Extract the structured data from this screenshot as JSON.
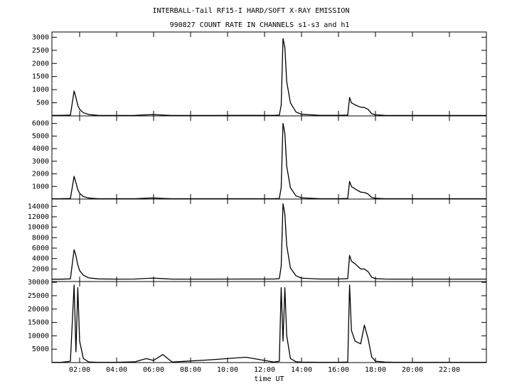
{
  "title": "INTERBALL-Tail RF15-I HARD/SOFT X-RAY EMISSION",
  "subtitle": "990827  COUNT RATE IN CHANNELS s1-s3 and h1",
  "chart_data": [
    {
      "type": "line",
      "color": "#000000",
      "x": [
        0.5,
        1.0,
        1.5,
        1.7,
        1.8,
        1.9,
        2.0,
        2.2,
        2.5,
        3.0,
        4.0,
        5.0,
        5.6,
        6.0,
        6.5,
        7.0,
        9.0,
        11.0,
        12.5,
        12.8,
        12.9,
        13.0,
        13.1,
        13.2,
        13.4,
        13.7,
        14.0,
        15.0,
        16.0,
        16.5,
        16.6,
        16.7,
        16.9,
        17.2,
        17.4,
        17.6,
        17.8,
        18.0,
        18.5,
        19.0,
        20.0,
        22.0,
        24.0
      ],
      "values": [
        20,
        20,
        30,
        950,
        700,
        400,
        250,
        120,
        50,
        20,
        15,
        20,
        40,
        50,
        30,
        15,
        15,
        20,
        20,
        30,
        400,
        2950,
        2600,
        1300,
        500,
        150,
        60,
        20,
        20,
        30,
        700,
        500,
        420,
        330,
        320,
        250,
        80,
        40,
        20,
        15,
        15,
        15,
        15
      ],
      "xlim": [
        0.5,
        24
      ],
      "ylim": [
        0,
        3200
      ],
      "yticks": [
        500,
        1000,
        1500,
        2000,
        2500,
        3000
      ]
    },
    {
      "type": "line",
      "color": "#000000",
      "x": [
        0.5,
        1.0,
        1.5,
        1.7,
        1.8,
        1.9,
        2.0,
        2.2,
        2.5,
        3.0,
        4.0,
        5.0,
        5.6,
        6.0,
        6.5,
        7.0,
        9.0,
        11.0,
        12.5,
        12.8,
        12.9,
        13.0,
        13.1,
        13.2,
        13.4,
        13.7,
        14.0,
        15.0,
        16.0,
        16.5,
        16.6,
        16.7,
        16.9,
        17.2,
        17.4,
        17.6,
        17.8,
        18.0,
        18.5,
        19.0,
        20.0,
        22.0,
        24.0
      ],
      "values": [
        30,
        30,
        50,
        1800,
        1300,
        750,
        450,
        200,
        80,
        30,
        25,
        30,
        70,
        90,
        50,
        25,
        25,
        30,
        30,
        50,
        900,
        6000,
        5200,
        2600,
        900,
        250,
        100,
        30,
        30,
        50,
        1400,
        1000,
        800,
        550,
        520,
        400,
        120,
        60,
        30,
        25,
        25,
        25,
        25
      ],
      "xlim": [
        0.5,
        24
      ],
      "ylim": [
        0,
        6600
      ],
      "yticks": [
        1000,
        2000,
        3000,
        4000,
        5000,
        6000
      ]
    },
    {
      "type": "line",
      "color": "#000000",
      "x": [
        0.5,
        1.0,
        1.5,
        1.7,
        1.8,
        1.9,
        2.0,
        2.2,
        2.5,
        3.0,
        4.0,
        5.0,
        5.6,
        6.0,
        6.5,
        7.0,
        9.0,
        11.0,
        12.5,
        12.8,
        12.9,
        13.0,
        13.1,
        13.2,
        13.4,
        13.7,
        14.0,
        15.0,
        16.0,
        16.5,
        16.6,
        16.7,
        16.9,
        17.2,
        17.4,
        17.6,
        17.8,
        18.0,
        18.5,
        19.0,
        20.0,
        22.0,
        24.0
      ],
      "values": [
        50,
        50,
        100,
        5700,
        4500,
        2800,
        1700,
        800,
        300,
        100,
        60,
        80,
        200,
        250,
        150,
        60,
        60,
        80,
        80,
        150,
        2500,
        14500,
        12500,
        6500,
        2200,
        700,
        250,
        80,
        80,
        150,
        4600,
        3500,
        3000,
        2000,
        2000,
        1500,
        400,
        150,
        80,
        60,
        60,
        60,
        60
      ],
      "xlim": [
        0.5,
        24
      ],
      "ylim": [
        -400,
        15400
      ],
      "yticks": [
        2000,
        4000,
        6000,
        8000,
        10000,
        12000,
        14000
      ]
    },
    {
      "type": "line",
      "color": "#000000",
      "x": [
        0.5,
        1.0,
        1.5,
        1.7,
        1.8,
        1.9,
        2.0,
        2.2,
        2.5,
        3.0,
        4.0,
        5.0,
        5.6,
        6.0,
        6.5,
        7.0,
        9.0,
        11.0,
        12.5,
        12.8,
        12.9,
        13.0,
        13.1,
        13.2,
        13.4,
        13.7,
        14.0,
        15.0,
        16.0,
        16.5,
        16.6,
        16.7,
        16.9,
        17.2,
        17.4,
        17.6,
        17.8,
        18.0,
        18.5,
        19.0,
        20.0,
        22.0,
        24.0
      ],
      "values": [
        100,
        100,
        500,
        29000,
        4000,
        28000,
        8000,
        1500,
        200,
        100,
        100,
        300,
        1500,
        800,
        3000,
        200,
        1000,
        2000,
        200,
        500,
        28000,
        8000,
        28000,
        10000,
        1500,
        300,
        150,
        100,
        100,
        200,
        29000,
        12000,
        8000,
        7000,
        14000,
        9000,
        2000,
        500,
        200,
        100,
        100,
        100,
        100
      ],
      "xlim": [
        0.5,
        24
      ],
      "ylim": [
        0,
        30300
      ],
      "yticks": [
        5000,
        10000,
        15000,
        20000,
        25000,
        30000
      ],
      "xticks": [
        {
          "value": 2,
          "label": "02:00"
        },
        {
          "value": 4,
          "label": "04:00"
        },
        {
          "value": 6,
          "label": "06:00"
        },
        {
          "value": 8,
          "label": "08:00"
        },
        {
          "value": 10,
          "label": "10:00"
        },
        {
          "value": 12,
          "label": "12:00"
        },
        {
          "value": 14,
          "label": "14:00"
        },
        {
          "value": 16,
          "label": "16:00"
        },
        {
          "value": 18,
          "label": "18:00"
        },
        {
          "value": 20,
          "label": "20:00"
        },
        {
          "value": 22,
          "label": "22:00"
        }
      ],
      "xlabel": "time UT"
    }
  ]
}
